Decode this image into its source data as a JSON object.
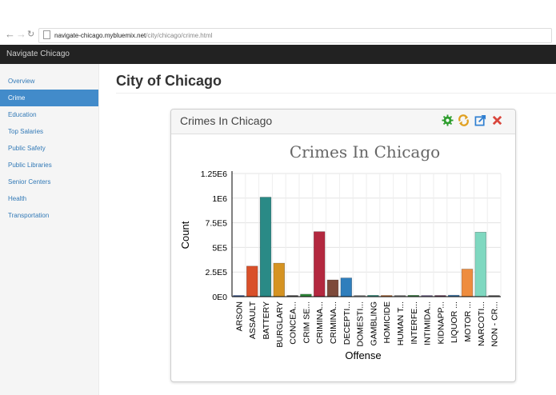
{
  "browser": {
    "url_host": "navigate-chicago.mybluemix.net",
    "url_path": "/city/chicago/crime.html"
  },
  "navbar": {
    "brand": "Navigate Chicago"
  },
  "sidebar": {
    "items": [
      {
        "label": "Overview",
        "active": false
      },
      {
        "label": "Crime",
        "active": true
      },
      {
        "label": "Education",
        "active": false
      },
      {
        "label": "Top Salaries",
        "active": false
      },
      {
        "label": "Public Safety",
        "active": false
      },
      {
        "label": "Public Libraries",
        "active": false
      },
      {
        "label": "Senior Centers",
        "active": false
      },
      {
        "label": "Health",
        "active": false
      },
      {
        "label": "Transportation",
        "active": false
      }
    ]
  },
  "page": {
    "title": "City of Chicago"
  },
  "panel": {
    "title": "Crimes In Chicago",
    "tools": [
      {
        "name": "settings-icon",
        "color": "#2e9e2e"
      },
      {
        "name": "refresh-icon",
        "color": "#e0a020"
      },
      {
        "name": "expand-icon",
        "color": "#2f7fd1"
      },
      {
        "name": "close-icon",
        "color": "#d9463c"
      }
    ]
  },
  "chart_data": {
    "type": "bar",
    "title": "Crimes In Chicago",
    "xlabel": "Offense",
    "ylabel": "Count",
    "ylim": [
      0,
      1250000
    ],
    "yticks": [
      {
        "value": 0,
        "label": "0E0"
      },
      {
        "value": 250000,
        "label": "2.5E5"
      },
      {
        "value": 500000,
        "label": "5E5"
      },
      {
        "value": 750000,
        "label": "7.5E5"
      },
      {
        "value": 1000000,
        "label": "1E6"
      },
      {
        "value": 1250000,
        "label": "1.25E6"
      }
    ],
    "grid": true,
    "categories": [
      "ARSON",
      "ASSAULT",
      "BATTERY",
      "BURGLARY",
      "CONCEA...",
      "CRIM SE...",
      "CRIMINA...",
      "CRIMINA...",
      "DECEPTI...",
      "DOMESTI...",
      "GAMBLING",
      "HOMICIDE",
      "HUMAN T...",
      "INTERFE...",
      "INTIMIDA...",
      "KIDNAPP...",
      "LIQUOR ...",
      "MOTOR ...",
      "NARCOTI...",
      "NON - CR..."
    ],
    "values": [
      12000,
      310000,
      1010000,
      340000,
      1000,
      25000,
      660000,
      170000,
      190000,
      500,
      14000,
      9000,
      500,
      14000,
      4000,
      7000,
      15000,
      280000,
      655000,
      1500
    ],
    "colors": [
      "#3a5fa8",
      "#d9502a",
      "#2a8a86",
      "#d59322",
      "#555555",
      "#2f8a3b",
      "#b3283f",
      "#7e4a3a",
      "#2f7ebc",
      "#999999",
      "#3a9a8a",
      "#c46a2a",
      "#888888",
      "#3e8a4a",
      "#7a6a9a",
      "#6a3a5a",
      "#3a78b0",
      "#ee8c3e",
      "#7fd8c0",
      "#666666"
    ]
  }
}
